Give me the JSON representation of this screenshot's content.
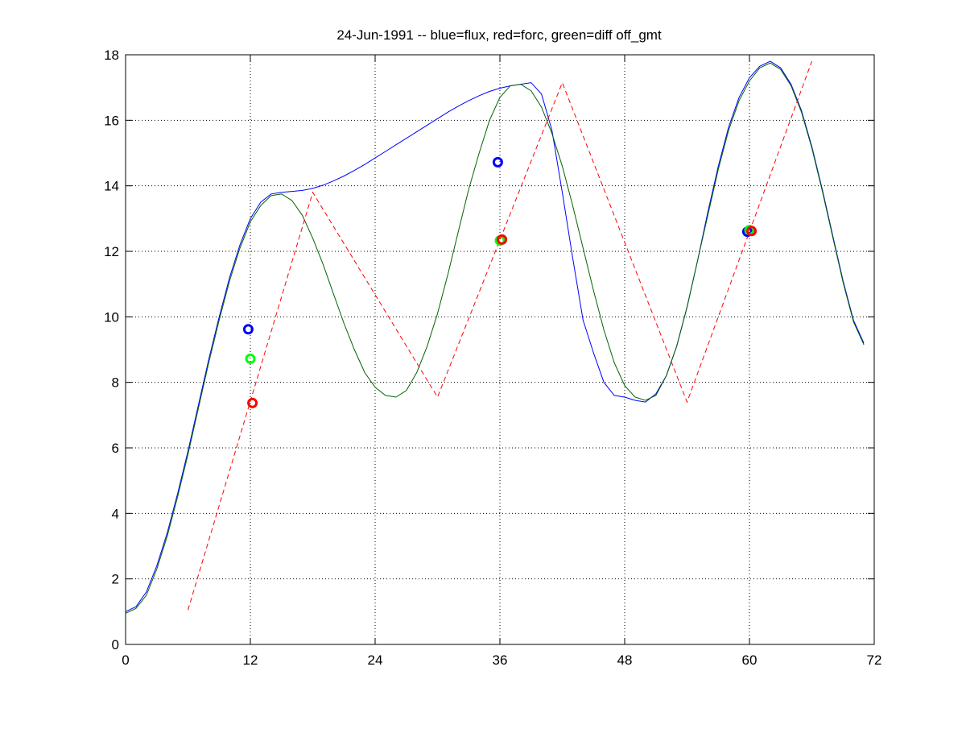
{
  "chart_data": {
    "type": "line",
    "title": "24-Jun-1991 -- blue=flux, red=forc, green=diff off_gmt",
    "xlabel": "",
    "ylabel": "",
    "xlim": [
      0,
      72
    ],
    "ylim": [
      0,
      18
    ],
    "xticks": [
      0,
      12,
      24,
      36,
      48,
      60,
      72
    ],
    "yticks": [
      0,
      2,
      4,
      6,
      8,
      10,
      12,
      14,
      16,
      18
    ],
    "grid": true,
    "legend": "none",
    "colors": {
      "flux": "#0000ff",
      "forc": "#ff0000",
      "diff": "#006400",
      "marker_blue": "#0000ff",
      "marker_red": "#ff0000",
      "marker_green": "#00ff00"
    },
    "series": [
      {
        "key": "flux",
        "style": "solid",
        "x": [
          0,
          1,
          2,
          3,
          4,
          5,
          6,
          7,
          8,
          9,
          10,
          11,
          12,
          13,
          14,
          15,
          16,
          17,
          18,
          19,
          20,
          21,
          22,
          23,
          24,
          25,
          26,
          27,
          28,
          29,
          30,
          31,
          32,
          33,
          34,
          35,
          36,
          37,
          38,
          39,
          40,
          41,
          42,
          43,
          44,
          45,
          46,
          47,
          48,
          49,
          50,
          51,
          52,
          53,
          54,
          55,
          56,
          57,
          58,
          59,
          60,
          61,
          62,
          63,
          64,
          65,
          66,
          67,
          68,
          69,
          70,
          71
        ],
        "y": [
          1.0,
          1.15,
          1.6,
          2.4,
          3.4,
          4.6,
          5.9,
          7.3,
          8.7,
          10.0,
          11.2,
          12.2,
          13.0,
          13.5,
          13.75,
          13.8,
          13.83,
          13.86,
          13.92,
          14.02,
          14.15,
          14.3,
          14.47,
          14.65,
          14.85,
          15.05,
          15.25,
          15.45,
          15.65,
          15.85,
          16.05,
          16.25,
          16.43,
          16.6,
          16.75,
          16.88,
          16.98,
          17.05,
          17.1,
          17.15,
          16.8,
          15.7,
          13.8,
          11.8,
          9.9,
          8.9,
          8.0,
          7.6,
          7.55,
          7.45,
          7.4,
          7.65,
          8.2,
          9.1,
          10.3,
          11.7,
          13.2,
          14.6,
          15.8,
          16.7,
          17.3,
          17.65,
          17.8,
          17.6,
          17.1,
          16.3,
          15.2,
          13.9,
          12.5,
          11.1,
          9.9,
          9.2
        ]
      },
      {
        "key": "diff",
        "style": "solid",
        "x": [
          0,
          1,
          2,
          3,
          4,
          5,
          6,
          7,
          8,
          9,
          10,
          11,
          12,
          13,
          14,
          15,
          16,
          17,
          18,
          19,
          20,
          21,
          22,
          23,
          24,
          25,
          26,
          27,
          28,
          29,
          30,
          31,
          32,
          33,
          34,
          35,
          36,
          37,
          38,
          39,
          40,
          41,
          42,
          43,
          44,
          45,
          46,
          47,
          48,
          49,
          50,
          51,
          52,
          53,
          54,
          55,
          56,
          57,
          58,
          59,
          60,
          61,
          62,
          63,
          64,
          65,
          66,
          67,
          68,
          69,
          70,
          71
        ],
        "y": [
          0.95,
          1.1,
          1.5,
          2.3,
          3.3,
          4.5,
          5.8,
          7.2,
          8.6,
          9.9,
          11.1,
          12.1,
          12.9,
          13.4,
          13.7,
          13.75,
          13.55,
          13.1,
          12.4,
          11.6,
          10.7,
          9.8,
          9.0,
          8.3,
          7.85,
          7.6,
          7.55,
          7.75,
          8.3,
          9.1,
          10.1,
          11.3,
          12.6,
          13.9,
          15.0,
          16.0,
          16.7,
          17.05,
          17.1,
          16.9,
          16.4,
          15.6,
          14.6,
          13.4,
          12.1,
          10.8,
          9.6,
          8.6,
          7.9,
          7.55,
          7.45,
          7.6,
          8.2,
          9.1,
          10.3,
          11.7,
          13.1,
          14.5,
          15.7,
          16.6,
          17.2,
          17.6,
          17.75,
          17.55,
          17.05,
          16.25,
          15.15,
          13.85,
          12.45,
          11.05,
          9.85,
          9.15
        ]
      },
      {
        "key": "forc",
        "style": "dashed",
        "x": [
          6,
          18,
          30,
          42,
          54,
          66
        ],
        "y": [
          1.05,
          13.8,
          7.55,
          17.15,
          7.4,
          17.8
        ]
      }
    ],
    "markers": [
      {
        "key": "flux",
        "color_key": "marker_blue",
        "x": [
          11.8,
          35.8,
          59.8
        ],
        "y": [
          9.62,
          14.72,
          12.6
        ]
      },
      {
        "key": "diff",
        "color_key": "marker_green",
        "x": [
          12.0,
          36.0,
          60.0
        ],
        "y": [
          8.72,
          12.33,
          12.65
        ]
      },
      {
        "key": "forc",
        "color_key": "marker_red",
        "x": [
          12.2,
          36.2,
          60.2
        ],
        "y": [
          7.37,
          12.36,
          12.62
        ]
      }
    ]
  }
}
